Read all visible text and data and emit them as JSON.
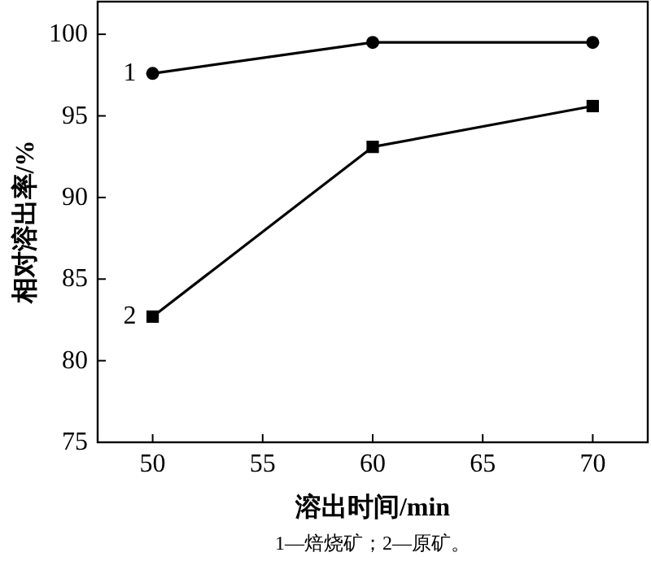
{
  "chart_data": {
    "type": "line",
    "xlabel": "溶出时间/min",
    "ylabel": "相对溶出率/%",
    "annotations": [
      "1—焙烧矿；2—原矿。"
    ],
    "x": [
      50,
      60,
      70
    ],
    "series": [
      {
        "name": "1",
        "color": "#000000",
        "marker": "circle",
        "values": [
          97.6,
          99.5,
          99.5
        ]
      },
      {
        "name": "2",
        "color": "#000000",
        "marker": "square",
        "values": [
          82.7,
          93.1,
          95.6
        ]
      }
    ],
    "xlim": [
      47.5,
      72.5
    ],
    "xticks": [
      50,
      55,
      60,
      65,
      70
    ],
    "ylim": [
      75,
      102
    ],
    "yticks": [
      75,
      80,
      85,
      90,
      95,
      100
    ],
    "grid": false,
    "line_style": "solid"
  }
}
